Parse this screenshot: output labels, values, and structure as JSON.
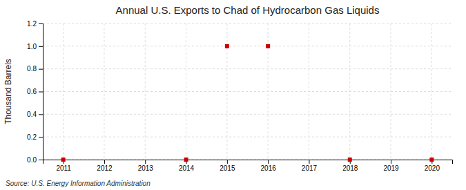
{
  "chart_data": {
    "type": "scatter",
    "title": "Annual U.S. Exports to Chad of Hydrocarbon Gas Liquids",
    "y_label": "Thousand Barrels",
    "annotations": [
      "Source: U.S. Energy Information Administration"
    ],
    "x": [
      2011,
      2014,
      2015,
      2016,
      2018,
      2020
    ],
    "values": [
      0.0,
      0.0,
      1.0,
      1.0,
      0.0,
      0.0
    ],
    "color": "#cc0000",
    "marker": "square",
    "xlim": [
      2010.5,
      2020.5
    ],
    "ylim": [
      0.0,
      1.2
    ],
    "xticks": [
      2011,
      2012,
      2013,
      2014,
      2015,
      2016,
      2017,
      2018,
      2019,
      2020
    ],
    "yticks": [
      {
        "value": 0,
        "label": "0.0"
      },
      0.2,
      0.4,
      0.6,
      0.8,
      {
        "value": 1,
        "label": "1.0"
      },
      1.2
    ],
    "grid": true
  }
}
